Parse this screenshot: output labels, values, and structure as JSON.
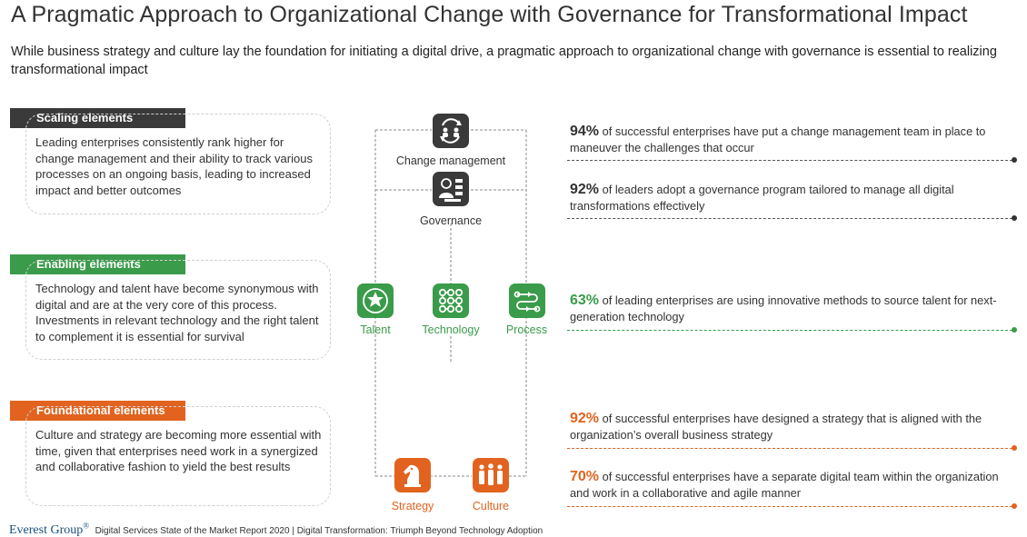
{
  "title": "A Pragmatic Approach to Organizational Change with Governance for Transformational Impact",
  "subtitle": "While business strategy and culture lay the foundation for initiating a digital drive, a pragmatic approach to organizational change with governance is essential to realizing transformational impact",
  "colors": {
    "dark": "#3a3a3a",
    "green": "#3a9b4a",
    "orange": "#e2631f"
  },
  "sections": [
    {
      "tab": "Scaling elements",
      "color": "#3a3a3a",
      "text": "Leading enterprises consistently rank higher for change management and their ability to track various processes on an ongoing basis, leading to increased impact and better outcomes"
    },
    {
      "tab": "Enabling elements",
      "color": "#3a9b4a",
      "text": "Technology and talent have become synonymous with digital and are at the very core of this process. Investments in relevant technology and the right talent to complement it is essential for survival"
    },
    {
      "tab": "Foundational elements",
      "color": "#e2631f",
      "text": "Culture and strategy are becoming more essential with time, given that enterprises need work in a synergized and collaborative fashion to yield the best results"
    }
  ],
  "nodes": {
    "change_management": {
      "label": "Change management",
      "icon": "people-exchange-icon"
    },
    "governance": {
      "label": "Governance",
      "icon": "governance-icon"
    },
    "talent": {
      "label": "Talent",
      "icon": "talent-star-icon"
    },
    "technology": {
      "label": "Technology",
      "icon": "network-nodes-icon"
    },
    "process": {
      "label": "Process",
      "icon": "process-flow-icon"
    },
    "strategy": {
      "label": "Strategy",
      "icon": "chess-knight-icon"
    },
    "culture": {
      "label": "Culture",
      "icon": "team-group-icon"
    }
  },
  "stats": [
    {
      "pct": "94%",
      "text": " of successful enterprises have put a change management team in place to maneuver the challenges that occur",
      "color": "#333333"
    },
    {
      "pct": "92%",
      "text": " of leaders adopt a governance program tailored to manage all digital transformations effectively",
      "color": "#333333"
    },
    {
      "pct": "63%",
      "text": " of leading enterprises are using innovative methods to source talent for next-generation technology",
      "color": "#3a9b4a"
    },
    {
      "pct": "92%",
      "text": " of successful enterprises have designed a strategy that is aligned with the organization’s overall business strategy",
      "color": "#e2631f"
    },
    {
      "pct": "70%",
      "text": " of successful enterprises have a separate digital team within the organization and work in a collaborative and agile manner",
      "color": "#e2631f"
    }
  ],
  "footer": {
    "logo": "Everest Group",
    "registered": "®",
    "text": "Digital Services State of the Market Report 2020 | Digital Transformation: Triumph Beyond Technology Adoption"
  }
}
